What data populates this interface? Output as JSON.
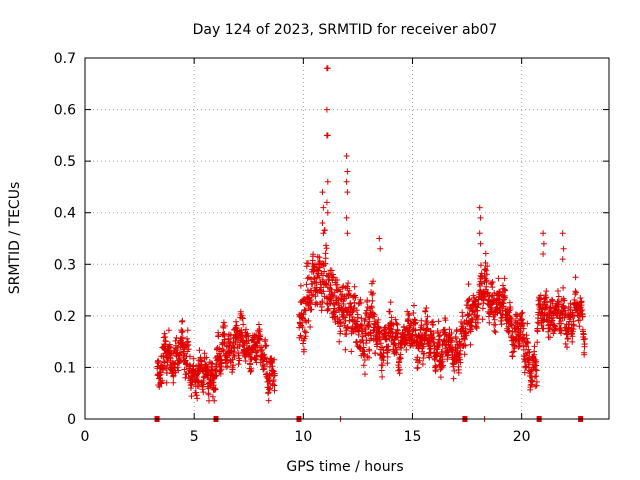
{
  "chart_data": {
    "type": "scatter",
    "title": "Day 124 of 2023, SRMTID for receiver ab07",
    "xlabel": "GPS time / hours",
    "ylabel": "SRMTID / TECUs",
    "xlim": [
      0,
      24
    ],
    "ylim": [
      0,
      0.7
    ],
    "xticks": [
      0,
      5,
      10,
      15,
      20
    ],
    "yticks": [
      0,
      0.1,
      0.2,
      0.3,
      0.4,
      0.5,
      0.6,
      0.7
    ],
    "grid": true,
    "marker": "+",
    "color": "#e00000",
    "segments": [
      {
        "start": 3.3,
        "end": 8.7,
        "anchors": [
          [
            3.3,
            0.08
          ],
          [
            3.8,
            0.12
          ],
          [
            4.5,
            0.13
          ],
          [
            5.0,
            0.09
          ],
          [
            5.5,
            0.08
          ],
          [
            6.0,
            0.1
          ],
          [
            6.5,
            0.14
          ],
          [
            7.0,
            0.15
          ],
          [
            7.5,
            0.14
          ],
          [
            8.0,
            0.13
          ],
          [
            8.4,
            0.1
          ],
          [
            8.7,
            0.09
          ]
        ],
        "spread": 0.05
      },
      {
        "start": 9.8,
        "end": 13.2,
        "anchors": [
          [
            9.8,
            0.17
          ],
          [
            10.2,
            0.24
          ],
          [
            10.6,
            0.26
          ],
          [
            11.0,
            0.3
          ],
          [
            11.3,
            0.22
          ],
          [
            11.8,
            0.23
          ],
          [
            12.3,
            0.18
          ],
          [
            12.8,
            0.17
          ],
          [
            13.2,
            0.18
          ]
        ],
        "spread": 0.08
      },
      {
        "start": 13.2,
        "end": 17.4,
        "anchors": [
          [
            13.2,
            0.18
          ],
          [
            13.7,
            0.15
          ],
          [
            14.2,
            0.15
          ],
          [
            14.8,
            0.16
          ],
          [
            15.3,
            0.17
          ],
          [
            15.8,
            0.15
          ],
          [
            16.3,
            0.14
          ],
          [
            16.8,
            0.13
          ],
          [
            17.4,
            0.15
          ]
        ],
        "spread": 0.05
      },
      {
        "start": 17.4,
        "end": 20.7,
        "anchors": [
          [
            17.4,
            0.17
          ],
          [
            17.8,
            0.22
          ],
          [
            18.3,
            0.25
          ],
          [
            18.8,
            0.23
          ],
          [
            19.3,
            0.2
          ],
          [
            19.8,
            0.17
          ],
          [
            20.3,
            0.12
          ],
          [
            20.7,
            0.1
          ]
        ],
        "spread": 0.05
      },
      {
        "start": 20.7,
        "end": 22.9,
        "anchors": [
          [
            20.7,
            0.18
          ],
          [
            21.2,
            0.22
          ],
          [
            21.7,
            0.19
          ],
          [
            22.2,
            0.2
          ],
          [
            22.6,
            0.21
          ],
          [
            22.9,
            0.16
          ]
        ],
        "spread": 0.045
      }
    ],
    "spikes": [
      {
        "x": 11.1,
        "y": [
          0.68,
          0.68,
          0.6,
          0.55,
          0.55,
          0.46,
          0.42,
          0.4
        ]
      },
      {
        "x": 12.0,
        "y": [
          0.51,
          0.48,
          0.46,
          0.44,
          0.39,
          0.36
        ]
      },
      {
        "x": 10.9,
        "y": [
          0.44,
          0.41,
          0.38,
          0.36
        ]
      },
      {
        "x": 18.1,
        "y": [
          0.41,
          0.39,
          0.36,
          0.34
        ]
      },
      {
        "x": 21.0,
        "y": [
          0.36,
          0.34,
          0.32
        ]
      },
      {
        "x": 21.9,
        "y": [
          0.36,
          0.33,
          0.31
        ]
      },
      {
        "x": 13.5,
        "y": [
          0.35,
          0.33
        ]
      }
    ],
    "axis_markers": [
      3.3,
      6.0,
      9.8,
      17.4,
      20.8,
      22.7
    ],
    "axis_ticks_minor": [
      11.7,
      18.3
    ]
  }
}
